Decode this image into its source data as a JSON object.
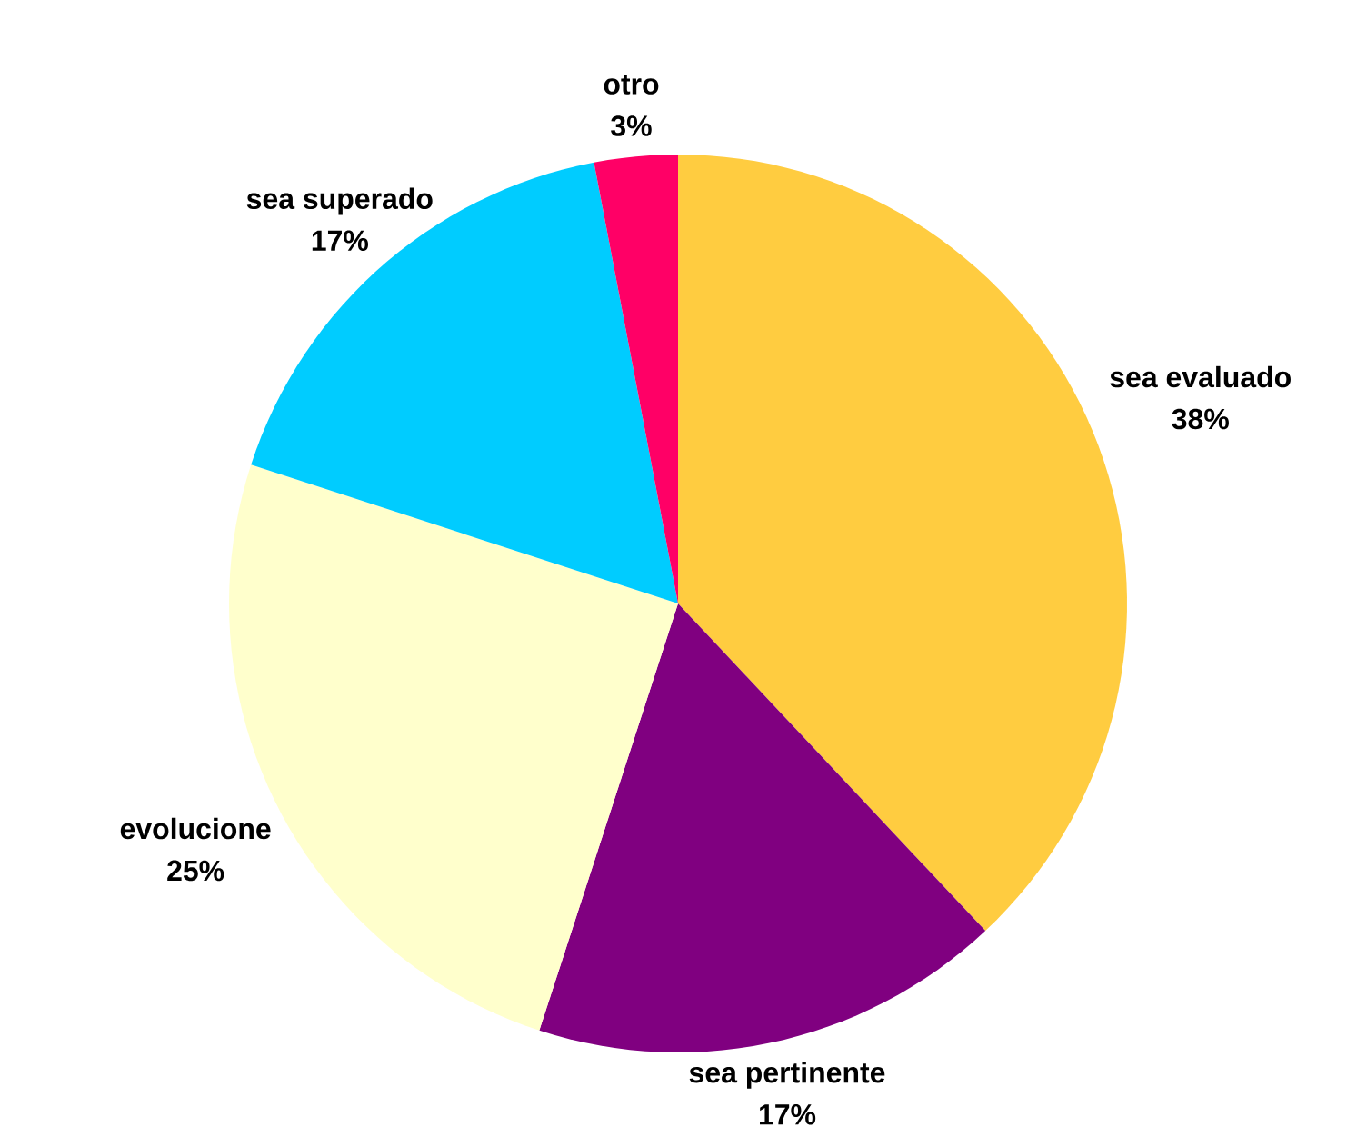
{
  "chart_data": {
    "type": "pie",
    "categories": [
      "sea evaluado",
      "sea pertinente",
      "evolucione",
      "sea superado",
      "otro"
    ],
    "values": [
      38,
      17,
      25,
      17,
      3
    ],
    "colors": [
      "#ffcc40",
      "#800080",
      "#ffffcc",
      "#00ccff",
      "#ff0066"
    ],
    "value_labels": [
      "38%",
      "17%",
      "25%",
      "17%",
      "3%"
    ]
  }
}
